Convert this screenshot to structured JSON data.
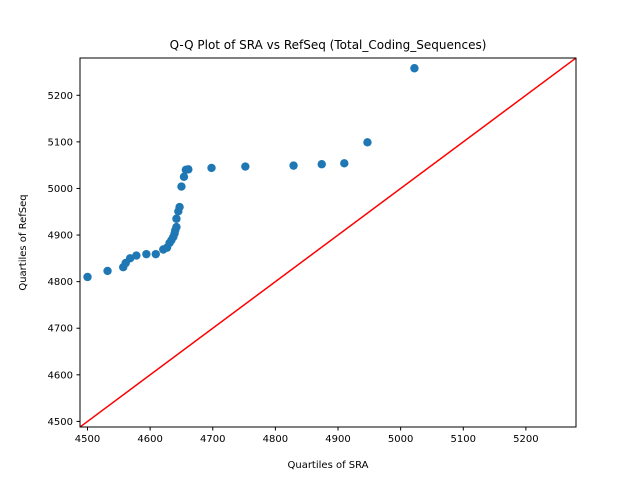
{
  "chart_data": {
    "type": "scatter",
    "title": "Q-Q Plot of SRA vs RefSeq (Total_Coding_Sequences)",
    "xlabel": "Quartiles of SRA",
    "ylabel": "Quartiles of RefSeq",
    "xlim": [
      4488,
      5280
    ],
    "ylim": [
      4488,
      5280
    ],
    "x_ticks": [
      4500,
      4600,
      4700,
      4800,
      4900,
      5000,
      5100,
      5200
    ],
    "y_ticks": [
      4500,
      4600,
      4700,
      4800,
      4900,
      5000,
      5100,
      5200
    ],
    "grid": false,
    "series": [
      {
        "marker": "circle",
        "points": [
          {
            "x": 4500,
            "y": 4810
          },
          {
            "x": 4532,
            "y": 4823
          },
          {
            "x": 4557,
            "y": 4831
          },
          {
            "x": 4561,
            "y": 4840
          },
          {
            "x": 4568,
            "y": 4850
          },
          {
            "x": 4578,
            "y": 4856
          },
          {
            "x": 4594,
            "y": 4859
          },
          {
            "x": 4609,
            "y": 4859
          },
          {
            "x": 4621,
            "y": 4869
          },
          {
            "x": 4627,
            "y": 4873
          },
          {
            "x": 4631,
            "y": 4883
          },
          {
            "x": 4634,
            "y": 4889
          },
          {
            "x": 4637,
            "y": 4896
          },
          {
            "x": 4639,
            "y": 4903
          },
          {
            "x": 4640,
            "y": 4910
          },
          {
            "x": 4642,
            "y": 4917
          },
          {
            "x": 4642,
            "y": 4935
          },
          {
            "x": 4645,
            "y": 4951
          },
          {
            "x": 4647,
            "y": 4960
          },
          {
            "x": 4650,
            "y": 5004
          },
          {
            "x": 4654,
            "y": 5025
          },
          {
            "x": 4657,
            "y": 5040
          },
          {
            "x": 4661,
            "y": 5041
          },
          {
            "x": 4698,
            "y": 5044
          },
          {
            "x": 4752,
            "y": 5047
          },
          {
            "x": 4829,
            "y": 5049
          },
          {
            "x": 4874,
            "y": 5052
          },
          {
            "x": 4910,
            "y": 5054
          },
          {
            "x": 4947,
            "y": 5099
          },
          {
            "x": 5022,
            "y": 5258
          }
        ]
      }
    ],
    "reference_line": {
      "type": "y=x",
      "from": [
        4488,
        4488
      ],
      "to": [
        5280,
        5280
      ]
    },
    "colors": {
      "points": "#1f77b4",
      "line": "#ff0000",
      "axes": "#000000"
    }
  }
}
